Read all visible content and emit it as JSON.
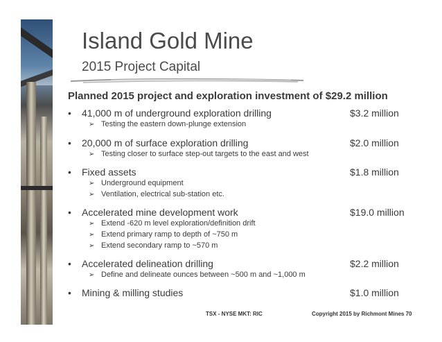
{
  "slide": {
    "title": "Island Gold Mine",
    "subtitle": "2015 Project Capital",
    "headline": "Planned 2015 project and exploration investment of $29.2 million",
    "bullet_glyph": "•",
    "sub_glyph": "➢",
    "items": [
      {
        "label": "41,000 m of underground exploration drilling",
        "amount": "$3.2 million",
        "subs": [
          "Testing the eastern down-plunge extension"
        ]
      },
      {
        "label": "20,000 m of surface exploration drilling",
        "amount": "$2.0 million",
        "subs": [
          "Testing closer to surface step-out targets to the east and west"
        ]
      },
      {
        "label": "Fixed assets",
        "amount": "$1.8 million",
        "subs": [
          "Underground equipment",
          "Ventilation, electrical sub-station etc."
        ]
      },
      {
        "label": "Accelerated mine development work",
        "amount": "$19.0 million",
        "subs": [
          "Extend -620 m level exploration/definition drift",
          "Extend primary ramp to depth of ~750 m",
          "Extend secondary ramp to ~570 m"
        ]
      },
      {
        "label": "Accelerated delineation drilling",
        "amount": "$2.2 million",
        "subs": [
          "Define and delineate ounces between ~500 m and ~1,000 m"
        ]
      },
      {
        "label": "Mining & milling studies",
        "amount": "$1.0 million",
        "subs": []
      }
    ],
    "footer": {
      "ticker": "TSX - NYSE MKT: RIC",
      "copyright": "Copyright 2015 by Richmont Mines  70"
    }
  }
}
